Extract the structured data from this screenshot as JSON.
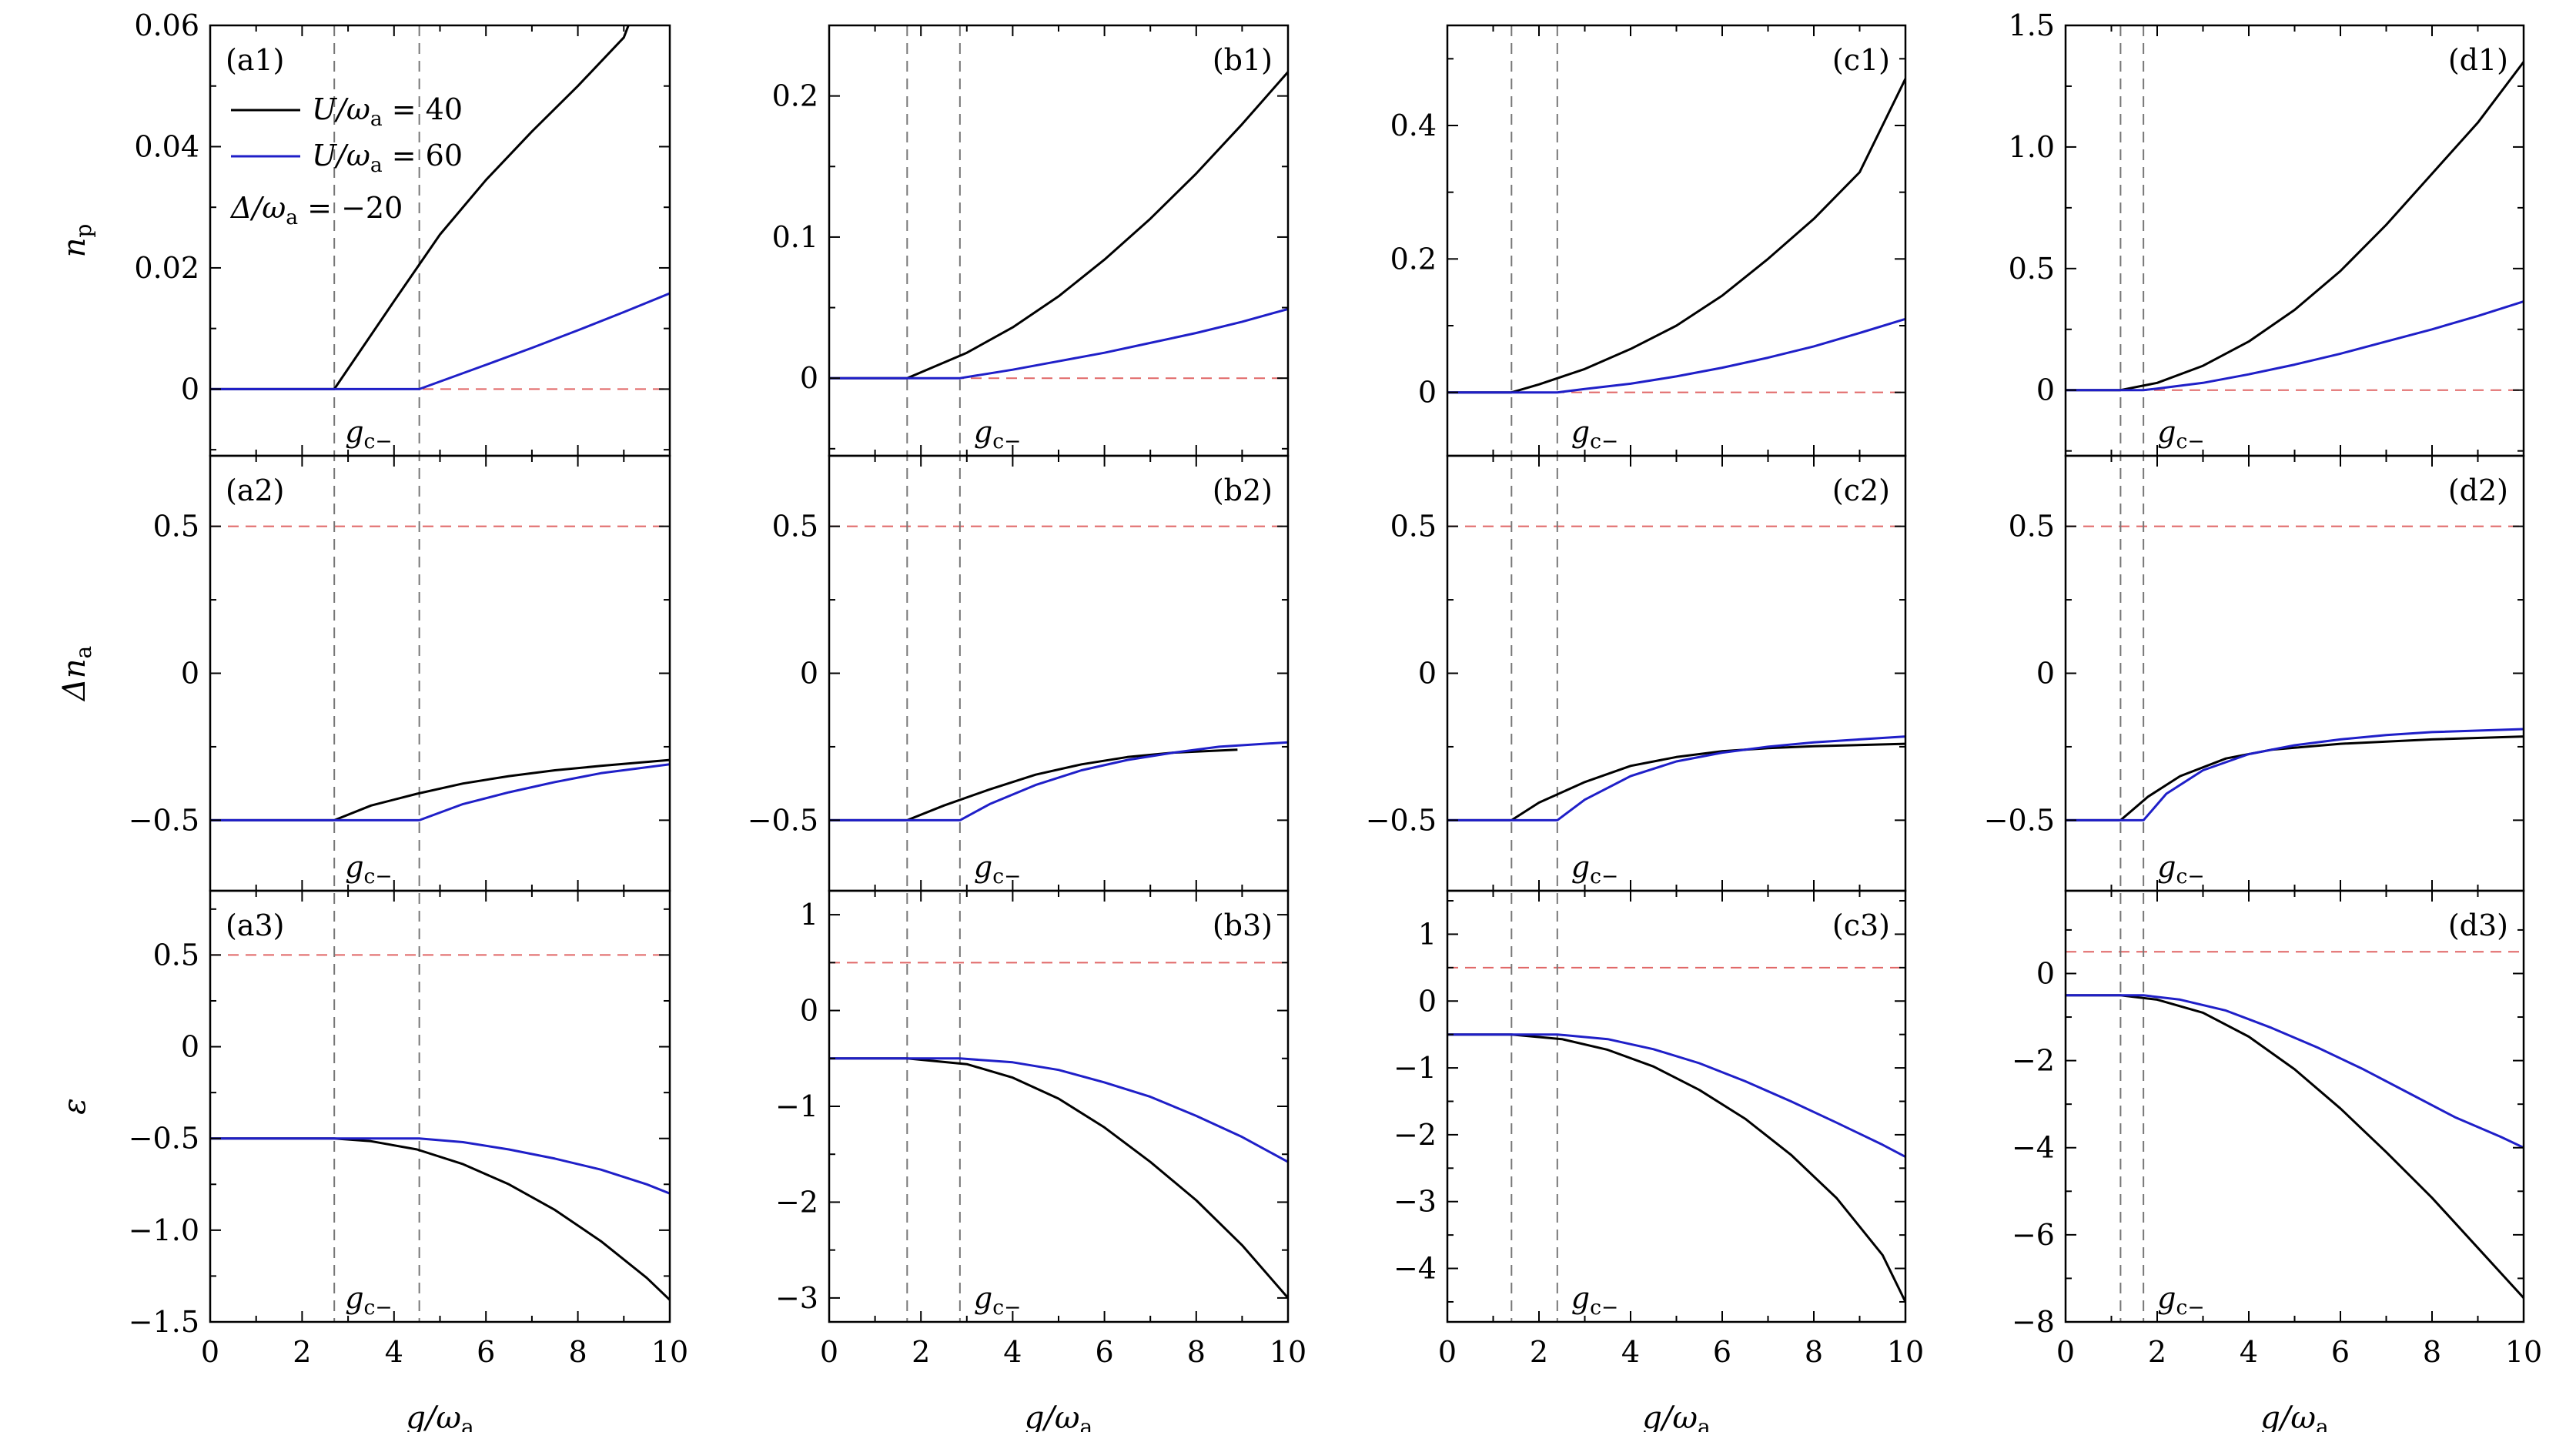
{
  "figure": {
    "xlabel": "g/ωa",
    "xlabel_main": "g/ω",
    "xlabel_sub": "a",
    "row_ylabels": [
      {
        "main": "n",
        "sub": "p"
      },
      {
        "main": "Δn",
        "sub": "a"
      },
      {
        "main": "ε",
        "sub": ""
      }
    ],
    "gc_label": {
      "main": "g",
      "sub": "c−"
    },
    "legend": {
      "entries": [
        {
          "label": "U/ωa = 40",
          "main": "U/ω",
          "sub": "a",
          "rest": " = 40",
          "color": "#000000"
        },
        {
          "label": "U/ωa = 60",
          "main": "U/ω",
          "sub": "a",
          "rest": " = 60",
          "color": "#1f1fc8"
        }
      ],
      "note": {
        "main": "Δ/ω",
        "sub": "a",
        "rest": " = −20"
      }
    },
    "colors": {
      "u40": "#000000",
      "u60": "#1f1fc8",
      "ref": "#e06666",
      "guide": "#777777"
    }
  },
  "chart_data": [
    {
      "id": "a1",
      "type": "line",
      "title": "(a1)",
      "xlabel": "g/ωa",
      "ylabel": "np",
      "xlim": [
        0,
        10
      ],
      "ylim": [
        -0.011,
        0.06
      ],
      "xticks": [
        "0",
        "2",
        "4",
        "6",
        "8",
        "10"
      ],
      "yticks": [
        {
          "v": 0,
          "t": "0"
        },
        {
          "v": 0.02,
          "t": "0.02"
        },
        {
          "v": 0.04,
          "t": "0.04"
        },
        {
          "v": 0.06,
          "t": "0.06"
        }
      ],
      "ref_y": 0,
      "gc": [
        2.7,
        4.55
      ],
      "series": [
        {
          "name": "U/ωa = 40",
          "x": [
            0,
            2.7,
            4,
            5,
            6,
            7,
            8,
            9,
            9.1
          ],
          "y": [
            0,
            0,
            0.0145,
            0.0255,
            0.0345,
            0.0425,
            0.05,
            0.058,
            0.06
          ]
        },
        {
          "name": "U/ωa = 60",
          "x": [
            0,
            4.55,
            6,
            7,
            8,
            9,
            10
          ],
          "y": [
            0,
            0,
            0.004,
            0.0068,
            0.0097,
            0.0127,
            0.0158
          ]
        }
      ]
    },
    {
      "id": "b1",
      "type": "line",
      "title": "(b1)",
      "xlabel": "g/ωa",
      "ylabel": "np",
      "xlim": [
        0,
        10
      ],
      "ylim": [
        -0.055,
        0.25
      ],
      "xticks": [
        "0",
        "2",
        "4",
        "6",
        "8",
        "10"
      ],
      "yticks": [
        {
          "v": 0,
          "t": "0"
        },
        {
          "v": 0.1,
          "t": "0.1"
        },
        {
          "v": 0.2,
          "t": "0.2"
        }
      ],
      "ref_y": 0,
      "gc": [
        1.7,
        2.85
      ],
      "series": [
        {
          "name": "U/ωa = 40",
          "x": [
            0,
            1.7,
            3,
            4,
            5,
            6,
            7,
            8,
            9,
            10
          ],
          "y": [
            0,
            0,
            0.018,
            0.036,
            0.058,
            0.084,
            0.113,
            0.145,
            0.18,
            0.217
          ]
        },
        {
          "name": "U/ωa = 60",
          "x": [
            0,
            2.85,
            4,
            5,
            6,
            7,
            8,
            9,
            10
          ],
          "y": [
            0,
            0,
            0.006,
            0.012,
            0.018,
            0.025,
            0.032,
            0.04,
            0.049
          ]
        }
      ]
    },
    {
      "id": "c1",
      "type": "line",
      "title": "(c1)",
      "xlabel": "g/ωa",
      "ylabel": "np",
      "xlim": [
        0,
        10
      ],
      "ylim": [
        -0.095,
        0.55
      ],
      "xticks": [
        "0",
        "2",
        "4",
        "6",
        "8",
        "10"
      ],
      "yticks": [
        {
          "v": 0,
          "t": "0"
        },
        {
          "v": 0.2,
          "t": "0.2"
        },
        {
          "v": 0.4,
          "t": "0.4"
        }
      ],
      "ref_y": 0,
      "gc": [
        1.4,
        2.4
      ],
      "series": [
        {
          "name": "U/ωa = 40",
          "x": [
            0,
            1.4,
            2,
            3,
            4,
            5,
            6,
            7,
            8,
            9,
            10
          ],
          "y": [
            0,
            0,
            0.012,
            0.035,
            0.065,
            0.1,
            0.145,
            0.2,
            0.26,
            0.33,
            0.47
          ]
        },
        {
          "name": "U/ωa = 60",
          "x": [
            0,
            2.4,
            3,
            4,
            5,
            6,
            7,
            8,
            9,
            10
          ],
          "y": [
            0,
            0,
            0.005,
            0.013,
            0.024,
            0.037,
            0.052,
            0.069,
            0.089,
            0.11
          ]
        }
      ]
    },
    {
      "id": "d1",
      "type": "line",
      "title": "(d1)",
      "xlabel": "g/ωa",
      "ylabel": "np",
      "xlim": [
        0,
        10
      ],
      "ylim": [
        -0.27,
        1.5
      ],
      "xticks": [
        "0",
        "2",
        "4",
        "6",
        "8",
        "10"
      ],
      "yticks": [
        {
          "v": 0,
          "t": "0"
        },
        {
          "v": 0.5,
          "t": "0.5"
        },
        {
          "v": 1.0,
          "t": "1.0"
        },
        {
          "v": 1.5,
          "t": "1.5"
        }
      ],
      "ref_y": 0,
      "gc": [
        1.2,
        1.7
      ],
      "series": [
        {
          "name": "U/ωa = 40",
          "x": [
            0,
            1.2,
            2,
            3,
            4,
            5,
            6,
            7,
            8,
            9,
            10
          ],
          "y": [
            0,
            0,
            0.03,
            0.1,
            0.2,
            0.33,
            0.49,
            0.68,
            0.89,
            1.1,
            1.35
          ]
        },
        {
          "name": "U/ωa = 60",
          "x": [
            0,
            1.7,
            2,
            3,
            4,
            5,
            6,
            7,
            8,
            9,
            10
          ],
          "y": [
            0,
            0,
            0.006,
            0.03,
            0.065,
            0.105,
            0.15,
            0.2,
            0.25,
            0.305,
            0.365
          ]
        }
      ]
    },
    {
      "id": "a2",
      "type": "line",
      "title": "(a2)",
      "xlabel": "g/ωa",
      "ylabel": "Δna",
      "xlim": [
        0,
        10
      ],
      "ylim": [
        -0.74,
        0.74
      ],
      "xticks": [
        "0",
        "2",
        "4",
        "6",
        "8",
        "10"
      ],
      "yticks": [
        {
          "v": -0.5,
          "t": "−0.5"
        },
        {
          "v": 0,
          "t": "0"
        },
        {
          "v": 0.5,
          "t": "0.5"
        }
      ],
      "ref_y": 0.5,
      "gc": [
        2.7,
        4.55
      ],
      "series": [
        {
          "name": "U/ωa = 40",
          "x": [
            0,
            2.7,
            3.5,
            4.5,
            5.5,
            6.5,
            7.5,
            8.5,
            10
          ],
          "y": [
            -0.5,
            -0.5,
            -0.45,
            -0.41,
            -0.375,
            -0.35,
            -0.33,
            -0.315,
            -0.295
          ]
        },
        {
          "name": "U/ωa = 60",
          "x": [
            0,
            4.55,
            5.5,
            6.5,
            7.5,
            8.5,
            10
          ],
          "y": [
            -0.5,
            -0.5,
            -0.445,
            -0.405,
            -0.37,
            -0.34,
            -0.31
          ]
        }
      ]
    },
    {
      "id": "b2",
      "type": "line",
      "title": "(b2)",
      "xlabel": "g/ωa",
      "ylabel": "Δna",
      "xlim": [
        0,
        10
      ],
      "ylim": [
        -0.74,
        0.74
      ],
      "xticks": [
        "0",
        "2",
        "4",
        "6",
        "8",
        "10"
      ],
      "yticks": [
        {
          "v": -0.5,
          "t": "−0.5"
        },
        {
          "v": 0,
          "t": "0"
        },
        {
          "v": 0.5,
          "t": "0.5"
        }
      ],
      "ref_y": 0.5,
      "gc": [
        1.7,
        2.85
      ],
      "series": [
        {
          "name": "U/ωa = 40",
          "x": [
            0,
            1.7,
            2.5,
            3.5,
            4.5,
            5.5,
            6.5,
            7.5,
            8.9
          ],
          "y": [
            -0.5,
            -0.5,
            -0.45,
            -0.395,
            -0.345,
            -0.31,
            -0.285,
            -0.27,
            -0.26
          ]
        },
        {
          "name": "U/ωa = 60",
          "x": [
            0,
            2.85,
            3.5,
            4.5,
            5.5,
            6.5,
            7.5,
            8.5,
            10
          ],
          "y": [
            -0.5,
            -0.5,
            -0.445,
            -0.38,
            -0.33,
            -0.295,
            -0.27,
            -0.25,
            -0.235
          ]
        }
      ]
    },
    {
      "id": "c2",
      "type": "line",
      "title": "(c2)",
      "xlabel": "g/ωa",
      "ylabel": "Δna",
      "xlim": [
        0,
        10
      ],
      "ylim": [
        -0.74,
        0.74
      ],
      "xticks": [
        "0",
        "2",
        "4",
        "6",
        "8",
        "10"
      ],
      "yticks": [
        {
          "v": -0.5,
          "t": "−0.5"
        },
        {
          "v": 0,
          "t": "0"
        },
        {
          "v": 0.5,
          "t": "0.5"
        }
      ],
      "ref_y": 0.5,
      "gc": [
        1.4,
        2.4
      ],
      "series": [
        {
          "name": "U/ωa = 40",
          "x": [
            0,
            1.4,
            2,
            3,
            4,
            5,
            6,
            7,
            8,
            10
          ],
          "y": [
            -0.5,
            -0.5,
            -0.44,
            -0.37,
            -0.315,
            -0.285,
            -0.265,
            -0.255,
            -0.248,
            -0.24
          ]
        },
        {
          "name": "U/ωa = 60",
          "x": [
            0,
            2.4,
            3,
            4,
            5,
            6,
            7,
            8,
            9,
            10
          ],
          "y": [
            -0.5,
            -0.5,
            -0.43,
            -0.35,
            -0.3,
            -0.27,
            -0.25,
            -0.235,
            -0.225,
            -0.215
          ]
        }
      ]
    },
    {
      "id": "d2",
      "type": "line",
      "title": "(d2)",
      "xlabel": "g/ωa",
      "ylabel": "Δna",
      "xlim": [
        0,
        10
      ],
      "ylim": [
        -0.74,
        0.74
      ],
      "xticks": [
        "0",
        "2",
        "4",
        "6",
        "8",
        "10"
      ],
      "yticks": [
        {
          "v": -0.5,
          "t": "−0.5"
        },
        {
          "v": 0,
          "t": "0"
        },
        {
          "v": 0.5,
          "t": "0.5"
        }
      ],
      "ref_y": 0.5,
      "gc": [
        1.2,
        1.7
      ],
      "series": [
        {
          "name": "U/ωa = 40",
          "x": [
            0,
            1.2,
            1.8,
            2.5,
            3.5,
            4.5,
            6,
            8,
            10
          ],
          "y": [
            -0.5,
            -0.5,
            -0.42,
            -0.35,
            -0.29,
            -0.26,
            -0.24,
            -0.225,
            -0.215
          ]
        },
        {
          "name": "U/ωa = 60",
          "x": [
            0,
            1.7,
            2.2,
            3,
            4,
            5,
            6,
            7,
            8,
            10
          ],
          "y": [
            -0.5,
            -0.5,
            -0.41,
            -0.33,
            -0.275,
            -0.245,
            -0.225,
            -0.21,
            -0.2,
            -0.19
          ]
        }
      ]
    },
    {
      "id": "a3",
      "type": "line",
      "title": "(a3)",
      "xlabel": "g/ωa",
      "ylabel": "ε",
      "xlim": [
        0,
        10
      ],
      "ylim": [
        -1.5,
        0.85
      ],
      "xticks": [
        "0",
        "2",
        "4",
        "6",
        "8",
        "10"
      ],
      "yticks": [
        {
          "v": -1.5,
          "t": "−1.5"
        },
        {
          "v": -1.0,
          "t": "−1.0"
        },
        {
          "v": -0.5,
          "t": "−0.5"
        },
        {
          "v": 0,
          "t": "0"
        },
        {
          "v": 0.5,
          "t": "0.5"
        }
      ],
      "ref_y": 0.5,
      "gc": [
        2.7,
        4.55
      ],
      "series": [
        {
          "name": "U/ωa = 40",
          "x": [
            0,
            2.7,
            3.5,
            4.5,
            5.5,
            6.5,
            7.5,
            8.5,
            9.5,
            10
          ],
          "y": [
            -0.5,
            -0.5,
            -0.515,
            -0.56,
            -0.64,
            -0.75,
            -0.89,
            -1.06,
            -1.26,
            -1.38
          ]
        },
        {
          "name": "U/ωa = 60",
          "x": [
            0,
            4.55,
            5.5,
            6.5,
            7.5,
            8.5,
            9.5,
            10
          ],
          "y": [
            -0.5,
            -0.5,
            -0.52,
            -0.56,
            -0.61,
            -0.67,
            -0.75,
            -0.8
          ]
        }
      ]
    },
    {
      "id": "b3",
      "type": "line",
      "title": "(b3)",
      "xlabel": "g/ωa",
      "ylabel": "ε",
      "xlim": [
        0,
        10
      ],
      "ylim": [
        -3.25,
        1.25
      ],
      "xticks": [
        "0",
        "2",
        "4",
        "6",
        "8",
        "10"
      ],
      "yticks": [
        {
          "v": -3,
          "t": "−3"
        },
        {
          "v": -2,
          "t": "−2"
        },
        {
          "v": -1,
          "t": "−1"
        },
        {
          "v": 0,
          "t": "0"
        },
        {
          "v": 1,
          "t": "1"
        }
      ],
      "ref_y": 0.5,
      "gc": [
        1.7,
        2.85
      ],
      "series": [
        {
          "name": "U/ωa = 40",
          "x": [
            0,
            1.7,
            3,
            4,
            5,
            6,
            7,
            8,
            9,
            10
          ],
          "y": [
            -0.5,
            -0.5,
            -0.56,
            -0.7,
            -0.92,
            -1.22,
            -1.58,
            -1.98,
            -2.45,
            -3.0
          ]
        },
        {
          "name": "U/ωa = 60",
          "x": [
            0,
            2.85,
            4,
            5,
            6,
            7,
            8,
            9,
            10
          ],
          "y": [
            -0.5,
            -0.5,
            -0.54,
            -0.62,
            -0.75,
            -0.9,
            -1.1,
            -1.32,
            -1.58
          ]
        }
      ]
    },
    {
      "id": "c3",
      "type": "line",
      "title": "(c3)",
      "xlabel": "g/ωa",
      "ylabel": "ε",
      "xlim": [
        0,
        10
      ],
      "ylim": [
        -4.8,
        1.65
      ],
      "xticks": [
        "0",
        "2",
        "4",
        "6",
        "8",
        "10"
      ],
      "yticks": [
        {
          "v": -4,
          "t": "−4"
        },
        {
          "v": -3,
          "t": "−3"
        },
        {
          "v": -2,
          "t": "−2"
        },
        {
          "v": -1,
          "t": "−1"
        },
        {
          "v": 0,
          "t": "0"
        },
        {
          "v": 1,
          "t": "1"
        }
      ],
      "ref_y": 0.5,
      "gc": [
        1.4,
        2.4
      ],
      "series": [
        {
          "name": "U/ωa = 40",
          "x": [
            0,
            1.4,
            2.5,
            3.5,
            4.5,
            5.5,
            6.5,
            7.5,
            8.5,
            9.5,
            10
          ],
          "y": [
            -0.5,
            -0.5,
            -0.57,
            -0.73,
            -0.98,
            -1.33,
            -1.76,
            -2.3,
            -2.95,
            -3.8,
            -4.5
          ]
        },
        {
          "name": "U/ωa = 60",
          "x": [
            0,
            2.4,
            3.5,
            4.5,
            5.5,
            6.5,
            7.5,
            8.5,
            9.5,
            10
          ],
          "y": [
            -0.5,
            -0.5,
            -0.57,
            -0.72,
            -0.93,
            -1.2,
            -1.5,
            -1.82,
            -2.15,
            -2.33
          ]
        }
      ]
    },
    {
      "id": "d3",
      "type": "line",
      "title": "(d3)",
      "xlabel": "g/ωa",
      "ylabel": "ε",
      "xlim": [
        0,
        10
      ],
      "ylim": [
        -8.0,
        1.9
      ],
      "xticks": [
        "0",
        "2",
        "4",
        "6",
        "8",
        "10"
      ],
      "yticks": [
        {
          "v": -8,
          "t": "−8"
        },
        {
          "v": -6,
          "t": "−6"
        },
        {
          "v": -4,
          "t": "−4"
        },
        {
          "v": -2,
          "t": "−2"
        },
        {
          "v": 0,
          "t": "0"
        }
      ],
      "ref_y": 0.5,
      "gc": [
        1.2,
        1.7
      ],
      "series": [
        {
          "name": "U/ωa = 40",
          "x": [
            0,
            1.2,
            2,
            3,
            4,
            5,
            6,
            7,
            8,
            9,
            10
          ],
          "y": [
            -0.5,
            -0.5,
            -0.6,
            -0.9,
            -1.45,
            -2.2,
            -3.1,
            -4.1,
            -5.15,
            -6.3,
            -7.45
          ]
        },
        {
          "name": "U/ωa = 60",
          "x": [
            0,
            1.7,
            2.5,
            3.5,
            4.5,
            5.5,
            6.5,
            7.5,
            8.5,
            9.5,
            10
          ],
          "y": [
            -0.5,
            -0.5,
            -0.6,
            -0.85,
            -1.25,
            -1.7,
            -2.2,
            -2.75,
            -3.3,
            -3.75,
            -4.0
          ]
        }
      ]
    }
  ]
}
